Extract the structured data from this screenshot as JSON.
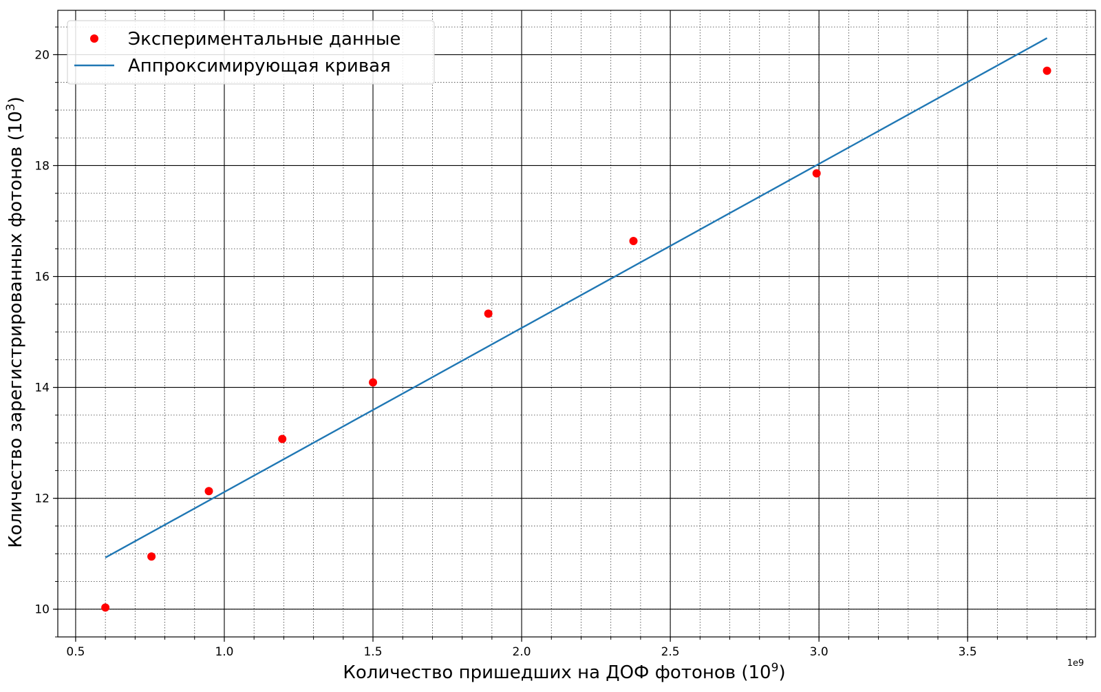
{
  "chart_data": {
    "type": "scatter",
    "xlabel": "Количество пришедших на ДОФ фотонов (10",
    "xlabel_sup": "9",
    "xlabel_end": ")",
    "ylabel": "Количество зарегистрированных фотонов (10",
    "ylabel_sup": "3",
    "ylabel_end": ")",
    "x_offset_label": "1e9",
    "xlim": [
      0.44,
      3.93
    ],
    "ylim": [
      9.5,
      20.8
    ],
    "x_ticks": [
      0.5,
      1.0,
      1.5,
      2.0,
      2.5,
      3.0,
      3.5
    ],
    "x_tick_labels": [
      "0.5",
      "1.0",
      "1.5",
      "2.0",
      "2.5",
      "3.0",
      "3.5"
    ],
    "y_ticks": [
      10,
      12,
      14,
      16,
      18,
      20
    ],
    "y_tick_labels": [
      "10",
      "12",
      "14",
      "16",
      "18",
      "20"
    ],
    "grid": {
      "major": true,
      "minor": true,
      "x_minor_step": 0.1,
      "y_minor_step": 0.5
    },
    "legend_position": "top-left",
    "series": [
      {
        "name": "Экспериментальные данные",
        "kind": "scatter",
        "color": "#ff0000",
        "x": [
          0.6,
          0.755,
          0.948,
          1.195,
          1.5,
          1.888,
          2.376,
          2.992,
          3.767
        ],
        "y": [
          10.03,
          10.95,
          12.13,
          13.07,
          14.09,
          15.33,
          16.64,
          17.86,
          19.71
        ]
      },
      {
        "name": "Аппроксимирующая кривая",
        "kind": "line",
        "color": "#1f77b4",
        "x": [
          0.6,
          3.767
        ],
        "y": [
          10.93,
          20.3
        ]
      }
    ]
  }
}
